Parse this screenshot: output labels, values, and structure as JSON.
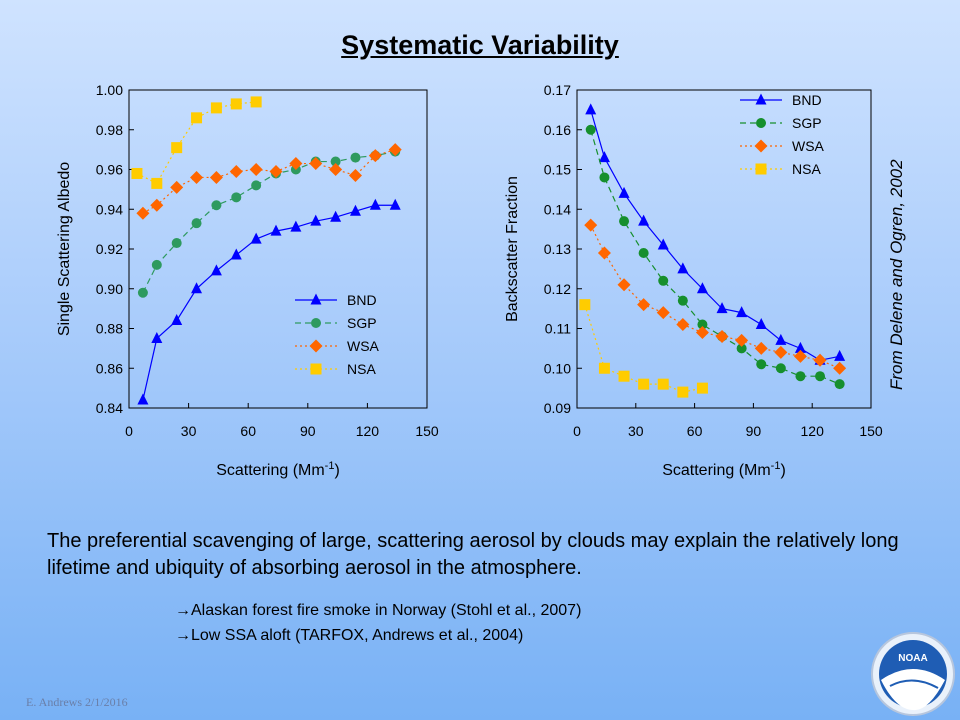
{
  "slide": {
    "title": "Systematic Variability",
    "annotation": "From Delene and Ogren, 2002",
    "body": "The preferential scavenging of large, scattering aerosol by clouds may explain the relatively long lifetime and ubiquity of absorbing aerosol in the atmosphere.",
    "bullets": [
      "Alaskan forest fire smoke in Norway (Stohl et al., 2007)",
      "Low SSA aloft (TARFOX,  Andrews et al., 2004)"
    ],
    "footer": "E. Andrews   2/1/2016",
    "logo_text": "NOAA"
  },
  "chart_data": [
    {
      "type": "line",
      "xlabel": "Scattering (Mm",
      "xlabel_sup": "-1",
      "xlabel_end": ")",
      "ylabel": "Single Scattering Albedo",
      "xlim": [
        0,
        150
      ],
      "ylim": [
        0.84,
        1.0
      ],
      "xticks": [
        0,
        30,
        60,
        90,
        120,
        150
      ],
      "yticks": [
        0.84,
        0.86,
        0.88,
        0.9,
        0.92,
        0.94,
        0.96,
        0.98,
        1.0
      ],
      "yticklabels": [
        "0.84",
        "0.86",
        "0.88",
        "0.90",
        "0.92",
        "0.94",
        "0.96",
        "0.98",
        "1.00"
      ],
      "grid": false,
      "legend": "bottom-right",
      "series": [
        {
          "name": "BND",
          "color": "#0000ff",
          "marker": "triangle",
          "dash": "solid",
          "x": [
            7,
            14,
            24,
            34,
            44,
            54,
            64,
            74,
            84,
            94,
            104,
            114,
            124,
            134
          ],
          "y": [
            0.844,
            0.875,
            0.884,
            0.9,
            0.909,
            0.917,
            0.925,
            0.929,
            0.931,
            0.934,
            0.936,
            0.939,
            0.942,
            0.942
          ]
        },
        {
          "name": "SGP",
          "color": "#2e9a5f",
          "marker": "circle",
          "dash": "dash",
          "x": [
            7,
            14,
            24,
            34,
            44,
            54,
            64,
            74,
            84,
            94,
            104,
            114,
            124,
            134
          ],
          "y": [
            0.898,
            0.912,
            0.923,
            0.933,
            0.942,
            0.946,
            0.952,
            0.958,
            0.96,
            0.964,
            0.964,
            0.966,
            0.967,
            0.969
          ]
        },
        {
          "name": "WSA",
          "color": "#ff6600",
          "marker": "diamond",
          "dash": "dot",
          "x": [
            7,
            14,
            24,
            34,
            44,
            54,
            64,
            74,
            84,
            94,
            104,
            114,
            124,
            134
          ],
          "y": [
            0.938,
            0.942,
            0.951,
            0.956,
            0.956,
            0.959,
            0.96,
            0.959,
            0.963,
            0.963,
            0.96,
            0.957,
            0.967,
            0.97
          ]
        },
        {
          "name": "NSA",
          "color": "#ffcc00",
          "marker": "square",
          "dash": "dot",
          "x": [
            4,
            14,
            24,
            34,
            44,
            54,
            64
          ],
          "y": [
            0.958,
            0.953,
            0.971,
            0.986,
            0.991,
            0.993,
            0.994
          ]
        }
      ]
    },
    {
      "type": "line",
      "xlabel": "Scattering  (Mm",
      "xlabel_sup": "-1",
      "xlabel_end": ")",
      "ylabel": "Backscatter Fraction",
      "xlim": [
        0,
        150
      ],
      "ylim": [
        0.09,
        0.17
      ],
      "xticks": [
        0,
        30,
        60,
        90,
        120,
        150
      ],
      "yticks": [
        0.09,
        0.1,
        0.11,
        0.12,
        0.13,
        0.14,
        0.15,
        0.16,
        0.17
      ],
      "yticklabels": [
        "0.09",
        "0.10",
        "0.11",
        "0.12",
        "0.13",
        "0.14",
        "0.15",
        "0.16",
        "0.17"
      ],
      "grid": false,
      "legend": "top-right",
      "series": [
        {
          "name": "BND",
          "color": "#0000ff",
          "marker": "triangle",
          "dash": "solid",
          "x": [
            7,
            14,
            24,
            34,
            44,
            54,
            64,
            74,
            84,
            94,
            104,
            114,
            124,
            134
          ],
          "y": [
            0.165,
            0.153,
            0.144,
            0.137,
            0.131,
            0.125,
            0.12,
            0.115,
            0.114,
            0.111,
            0.107,
            0.105,
            0.102,
            0.103
          ]
        },
        {
          "name": "SGP",
          "color": "#168f2d",
          "marker": "circle",
          "dash": "dash",
          "x": [
            7,
            14,
            24,
            34,
            44,
            54,
            64,
            74,
            84,
            94,
            104,
            114,
            124,
            134
          ],
          "y": [
            0.16,
            0.148,
            0.137,
            0.129,
            0.122,
            0.117,
            0.111,
            0.108,
            0.105,
            0.101,
            0.1,
            0.098,
            0.098,
            0.096
          ]
        },
        {
          "name": "WSA",
          "color": "#ff6600",
          "marker": "diamond",
          "dash": "dot",
          "x": [
            7,
            14,
            24,
            34,
            44,
            54,
            64,
            74,
            84,
            94,
            104,
            114,
            124,
            134
          ],
          "y": [
            0.136,
            0.129,
            0.121,
            0.116,
            0.114,
            0.111,
            0.109,
            0.108,
            0.107,
            0.105,
            0.104,
            0.103,
            0.102,
            0.1
          ]
        },
        {
          "name": "NSA",
          "color": "#ffcc00",
          "marker": "square",
          "dash": "dot",
          "x": [
            4,
            14,
            24,
            34,
            44,
            54,
            64
          ],
          "y": [
            0.116,
            0.1,
            0.098,
            0.096,
            0.096,
            0.094,
            0.095
          ]
        }
      ]
    }
  ]
}
